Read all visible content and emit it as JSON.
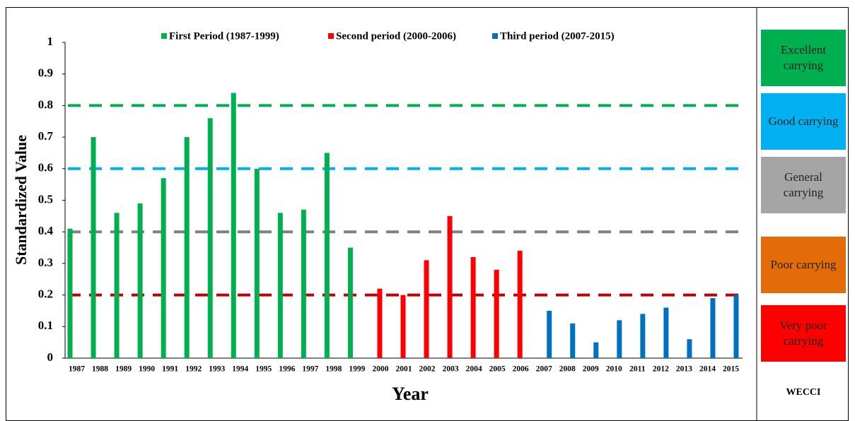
{
  "chart_data": {
    "type": "bar",
    "x_label": "Year",
    "y_label": "Standardized Value",
    "categories": [
      "1987",
      "1988",
      "1989",
      "1990",
      "1991",
      "1992",
      "1993",
      "1994",
      "1995",
      "1996",
      "1997",
      "1998",
      "1999",
      "2000",
      "2001",
      "2002",
      "2003",
      "2004",
      "2005",
      "2006",
      "2007",
      "2008",
      "2009",
      "2010",
      "2011",
      "2012",
      "2013",
      "2014",
      "2015"
    ],
    "series": [
      {
        "name": "First Period (1987-1999)",
        "color": "#00b050",
        "values": [
          0.41,
          0.7,
          0.46,
          0.49,
          0.57,
          0.7,
          0.76,
          0.84,
          0.6,
          0.46,
          0.47,
          0.65,
          0.35,
          null,
          null,
          null,
          null,
          null,
          null,
          null,
          null,
          null,
          null,
          null,
          null,
          null,
          null,
          null,
          null
        ]
      },
      {
        "name": "Second period (2000-2006)",
        "color": "#ff0000",
        "values": [
          null,
          null,
          null,
          null,
          null,
          null,
          null,
          null,
          null,
          null,
          null,
          null,
          null,
          0.22,
          0.2,
          0.31,
          0.45,
          0.32,
          0.28,
          0.34,
          null,
          null,
          null,
          null,
          null,
          null,
          null,
          null,
          null
        ]
      },
      {
        "name": "Third period (2007-2015)",
        "color": "#0070c0",
        "values": [
          null,
          null,
          null,
          null,
          null,
          null,
          null,
          null,
          null,
          null,
          null,
          null,
          null,
          null,
          null,
          null,
          null,
          null,
          null,
          null,
          0.15,
          0.11,
          0.05,
          0.12,
          0.14,
          0.16,
          0.06,
          0.19,
          0.2
        ]
      }
    ],
    "ylim": [
      0,
      1
    ],
    "yticks": [
      0,
      0.1,
      0.2,
      0.3,
      0.4,
      0.5,
      0.6,
      0.7,
      0.8,
      0.9,
      1
    ],
    "legend": "top",
    "reference_lines": [
      {
        "value": 0.8,
        "color": "#00b050"
      },
      {
        "value": 0.6,
        "color": "#00b0f0"
      },
      {
        "value": 0.4,
        "color": "#808080"
      },
      {
        "value": 0.2,
        "color": "#c00000"
      }
    ]
  },
  "classification": {
    "levels": [
      {
        "label": "Excellent carrying",
        "color": "#00b050"
      },
      {
        "label": "Good carrying",
        "color": "#00b0f0"
      },
      {
        "label": "General carrying",
        "color": "#a5a5a5"
      },
      {
        "label": "Poor carrying",
        "color": "#e36c09"
      },
      {
        "label": "Very poor carrying",
        "color": "#ff0000"
      }
    ],
    "title": "WECCI"
  }
}
